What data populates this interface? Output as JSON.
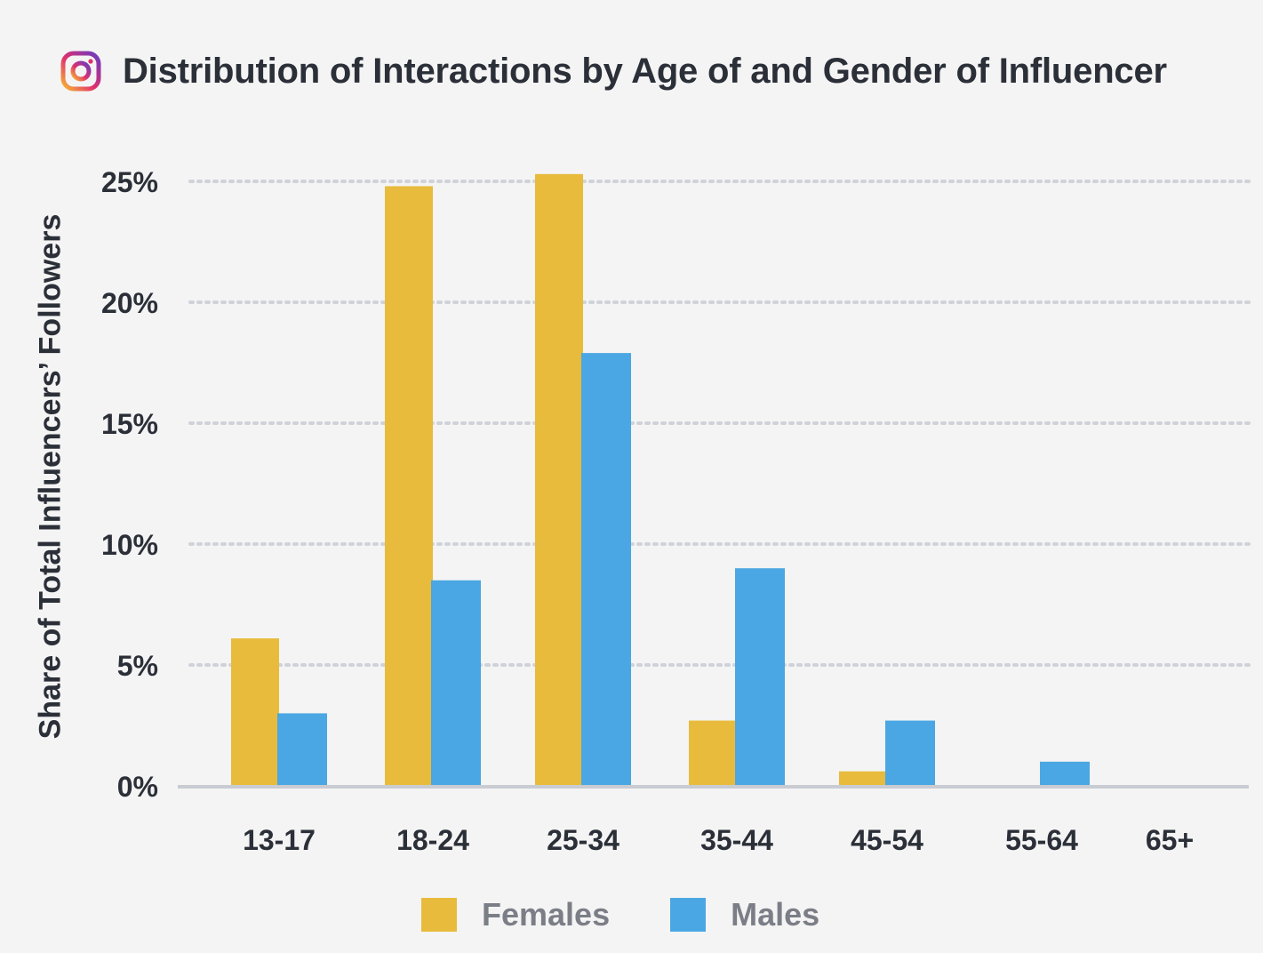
{
  "header": {
    "icon": "instagram-icon",
    "title": "Distribution of Interactions by Age of and Gender of Influencer"
  },
  "colors": {
    "females": "#e8bb3c",
    "males": "#4aa7e3",
    "text": "#2b2f38",
    "legend_text": "#7b7e86",
    "grid": "#cfd3d9",
    "background": "#f4f4f4"
  },
  "chart_data": {
    "type": "bar",
    "title": "Distribution of Interactions by Age of and Gender of Influencer",
    "xlabel": "",
    "ylabel": "Share of Total Influencers’ Followers",
    "categories": [
      "13-17",
      "18-24",
      "25-34",
      "35-44",
      "45-54",
      "55-64",
      "65+"
    ],
    "series": [
      {
        "name": "Females",
        "color": "#e8bb3c",
        "values": [
          6.1,
          24.8,
          25.3,
          2.7,
          0.6,
          0.0,
          0.0
        ]
      },
      {
        "name": "Males",
        "color": "#4aa7e3",
        "values": [
          3.0,
          8.5,
          17.9,
          9.0,
          2.7,
          1.0,
          0.0
        ]
      }
    ],
    "ylim": [
      0,
      25
    ],
    "yticks": [
      0,
      5,
      10,
      15,
      20,
      25
    ],
    "ytick_labels": [
      "0%",
      "5%",
      "10%",
      "15%",
      "20%",
      "25%"
    ],
    "grid": true,
    "legend_position": "bottom-center"
  },
  "legend": {
    "items": [
      {
        "label": "Females",
        "color": "#e8bb3c"
      },
      {
        "label": "Males",
        "color": "#4aa7e3"
      }
    ]
  }
}
